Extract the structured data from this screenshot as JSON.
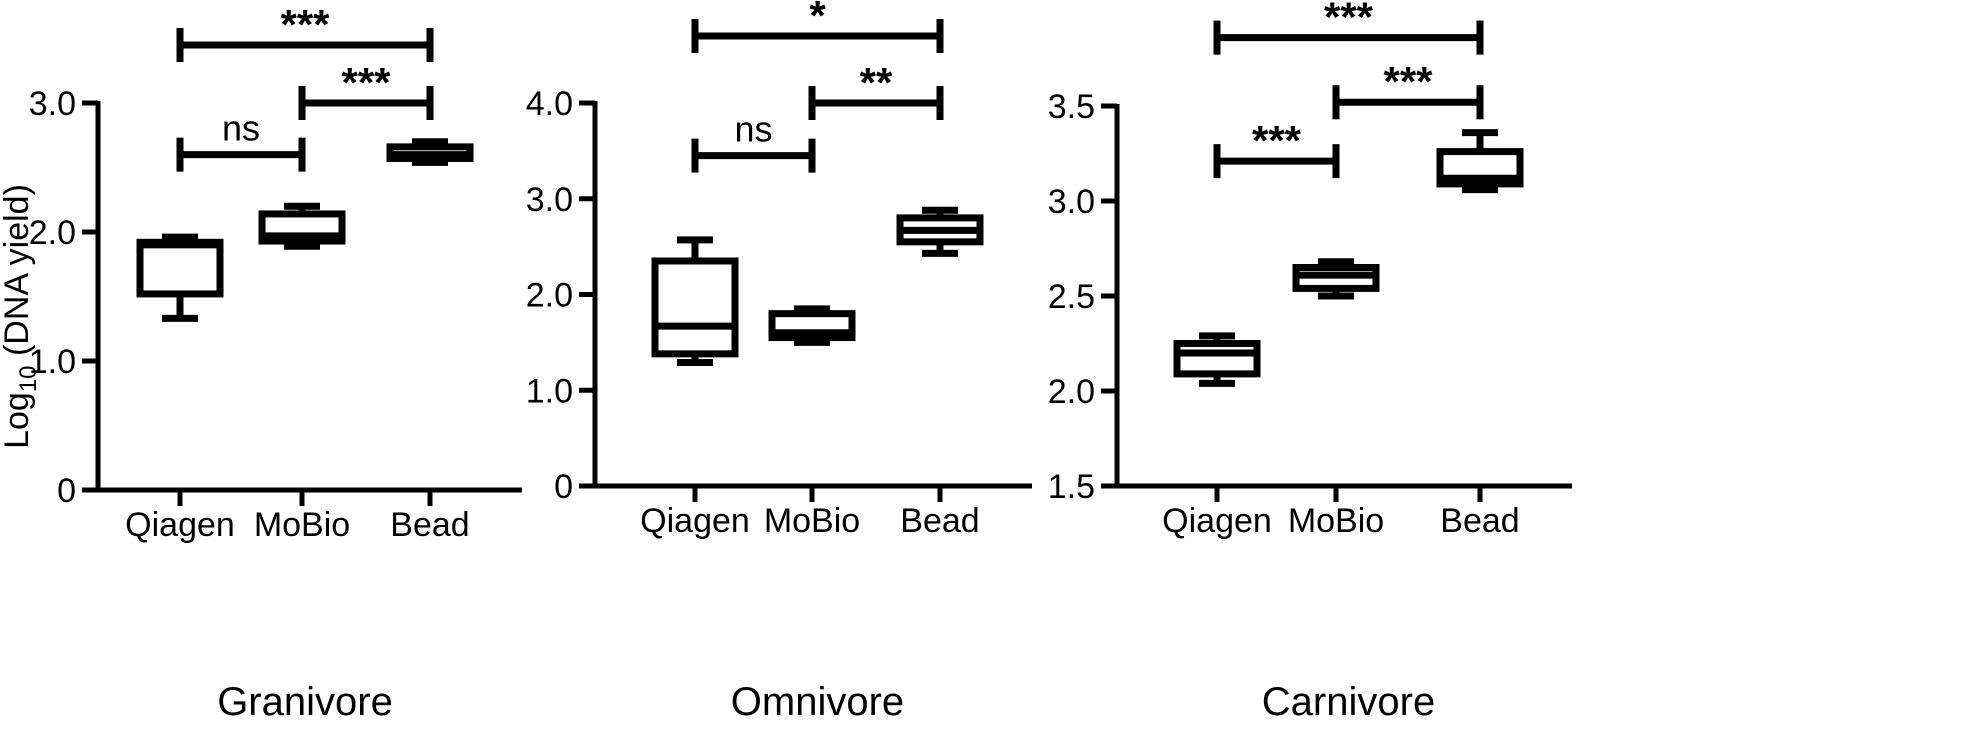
{
  "chart_data": [
    {
      "type": "box",
      "xlabel": "Granivore",
      "ylabel": "Log10 (DNA yield)",
      "ylabel_main": "Log",
      "ylabel_sub": "10",
      "ylabel_rest": " (DNA yield)",
      "ylim": [
        0,
        3.0
      ],
      "yticks": [
        0,
        1.0,
        2.0,
        3.0
      ],
      "ytick_labels": [
        "0",
        "1.0",
        "2.0",
        "3.0"
      ],
      "categories": [
        "Qiagen",
        "MoBio",
        "Bead"
      ],
      "boxes": [
        {
          "category": "Qiagen",
          "min": 1.33,
          "q1": 1.52,
          "median": 1.9,
          "q3": 1.92,
          "max": 1.96
        },
        {
          "category": "MoBio",
          "min": 1.89,
          "q1": 1.93,
          "median": 1.97,
          "q3": 2.14,
          "max": 2.2
        },
        {
          "category": "Bead",
          "min": 2.54,
          "q1": 2.57,
          "median": 2.6,
          "q3": 2.66,
          "max": 2.7
        }
      ],
      "comparisons": [
        {
          "from": "Qiagen",
          "to": "MoBio",
          "label": "ns",
          "y": 2.6
        },
        {
          "from": "MoBio",
          "to": "Bead",
          "label": "***",
          "y": 3.0
        },
        {
          "from": "Qiagen",
          "to": "Bead",
          "label": "***",
          "y": 3.45
        }
      ]
    },
    {
      "type": "box",
      "xlabel": "Omnivore",
      "ylabel": "",
      "ylim": [
        0,
        4.0
      ],
      "yticks": [
        0,
        1.0,
        2.0,
        3.0,
        4.0
      ],
      "ytick_labels": [
        "0",
        "1.0",
        "2.0",
        "3.0",
        "4.0"
      ],
      "categories": [
        "Qiagen",
        "MoBio",
        "Bead"
      ],
      "boxes": [
        {
          "category": "Qiagen",
          "min": 1.29,
          "q1": 1.38,
          "median": 1.67,
          "q3": 2.35,
          "max": 2.57
        },
        {
          "category": "MoBio",
          "min": 1.5,
          "q1": 1.55,
          "median": 1.6,
          "q3": 1.8,
          "max": 1.85
        },
        {
          "category": "Bead",
          "min": 2.43,
          "q1": 2.55,
          "median": 2.67,
          "q3": 2.8,
          "max": 2.88
        }
      ],
      "comparisons": [
        {
          "from": "Qiagen",
          "to": "MoBio",
          "label": "ns",
          "y": 3.45
        },
        {
          "from": "MoBio",
          "to": "Bead",
          "label": "**",
          "y": 4.0
        },
        {
          "from": "Qiagen",
          "to": "Bead",
          "label": "*",
          "y": 4.7
        }
      ]
    },
    {
      "type": "box",
      "xlabel": "Carnivore",
      "ylabel": "",
      "ylim": [
        1.5,
        3.5
      ],
      "yticks": [
        1.5,
        2.0,
        2.5,
        3.0,
        3.5
      ],
      "ytick_labels": [
        "1.5",
        "2.0",
        "2.5",
        "3.0",
        "3.5"
      ],
      "categories": [
        "Qiagen",
        "MoBio",
        "Bead"
      ],
      "boxes": [
        {
          "category": "Qiagen",
          "min": 2.04,
          "q1": 2.09,
          "median": 2.2,
          "q3": 2.25,
          "max": 2.29
        },
        {
          "category": "MoBio",
          "min": 2.5,
          "q1": 2.54,
          "median": 2.61,
          "q3": 2.65,
          "max": 2.68
        },
        {
          "category": "Bead",
          "min": 3.06,
          "q1": 3.09,
          "median": 3.12,
          "q3": 3.26,
          "max": 3.36
        }
      ],
      "comparisons": [
        {
          "from": "Qiagen",
          "to": "MoBio",
          "label": "***",
          "y": 3.21
        },
        {
          "from": "MoBio",
          "to": "Bead",
          "label": "***",
          "y": 3.52
        },
        {
          "from": "Qiagen",
          "to": "Bead",
          "label": "***",
          "y": 3.86
        }
      ]
    }
  ]
}
